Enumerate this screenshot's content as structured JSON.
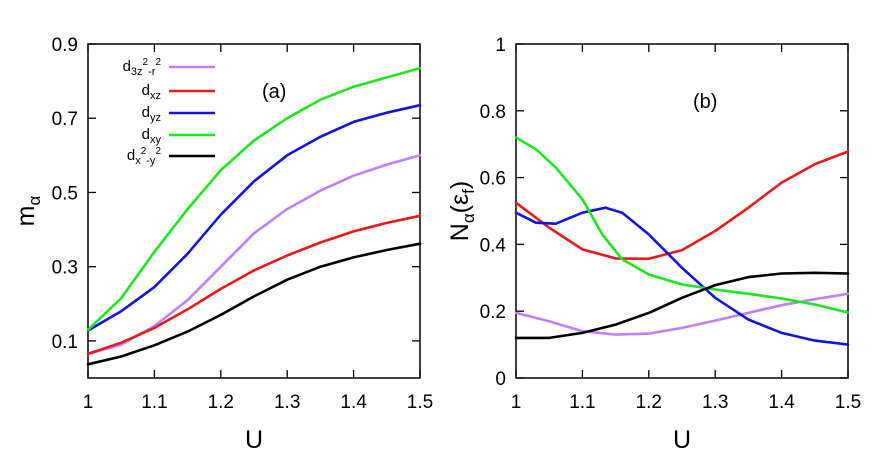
{
  "chart_data": [
    {
      "type": "line",
      "tag": "(a)",
      "xlabel": "U",
      "ylabel": "m",
      "ylabel_sub": "α",
      "xlim": [
        1.0,
        1.5
      ],
      "ylim": [
        0.0,
        0.9
      ],
      "xticks": [
        "1",
        "1.1",
        "1.2",
        "1.3",
        "1.4",
        "1.5"
      ],
      "yticks": [
        "0.1",
        "0.3",
        "0.5",
        "0.7",
        "0.9"
      ],
      "grid": false,
      "legend_position": "top-left",
      "series": [
        {
          "name": "d3z2-r2",
          "legend": {
            "base": "d",
            "sub": "3z",
            "sup1": "2",
            "sub2": "-r",
            "sup2": "2"
          },
          "color": "#bf80ff",
          "x": [
            1.0,
            1.05,
            1.1,
            1.15,
            1.2,
            1.25,
            1.3,
            1.35,
            1.4,
            1.45,
            1.5
          ],
          "y": [
            0.065,
            0.09,
            0.14,
            0.21,
            0.3,
            0.39,
            0.455,
            0.505,
            0.545,
            0.575,
            0.6
          ]
        },
        {
          "name": "dxz",
          "legend": {
            "base": "d",
            "sub": "xz"
          },
          "color": "#e41a1c",
          "x": [
            1.0,
            1.05,
            1.1,
            1.15,
            1.2,
            1.25,
            1.3,
            1.35,
            1.4,
            1.45,
            1.5
          ],
          "y": [
            0.065,
            0.095,
            0.135,
            0.185,
            0.24,
            0.29,
            0.33,
            0.365,
            0.395,
            0.418,
            0.437
          ]
        },
        {
          "name": "dyz",
          "legend": {
            "base": "d",
            "sub": "yz"
          },
          "color": "#1414d6",
          "x": [
            1.0,
            1.05,
            1.1,
            1.15,
            1.2,
            1.25,
            1.3,
            1.35,
            1.4,
            1.45,
            1.5
          ],
          "y": [
            0.128,
            0.18,
            0.245,
            0.335,
            0.44,
            0.53,
            0.6,
            0.65,
            0.69,
            0.715,
            0.735
          ]
        },
        {
          "name": "dxy",
          "legend": {
            "base": "d",
            "sub": "xy"
          },
          "color": "#1ee61e",
          "x": [
            1.0,
            1.05,
            1.1,
            1.15,
            1.2,
            1.25,
            1.3,
            1.35,
            1.4,
            1.45,
            1.5
          ],
          "y": [
            0.13,
            0.215,
            0.34,
            0.455,
            0.56,
            0.64,
            0.7,
            0.75,
            0.785,
            0.81,
            0.835
          ]
        },
        {
          "name": "dx2-y2",
          "legend": {
            "base": "d",
            "sub": "x",
            "sup1": "2",
            "sub2": "-y",
            "sup2": "2"
          },
          "color": "#000000",
          "x": [
            1.0,
            1.05,
            1.1,
            1.15,
            1.2,
            1.25,
            1.3,
            1.35,
            1.4,
            1.45,
            1.5
          ],
          "y": [
            0.037,
            0.058,
            0.088,
            0.125,
            0.17,
            0.22,
            0.265,
            0.3,
            0.325,
            0.345,
            0.362
          ]
        }
      ]
    },
    {
      "type": "line",
      "tag": "(b)",
      "xlabel": "U",
      "ylabel": "N",
      "ylabel_sub": "α",
      "ylabel_rest": "(ε",
      "ylabel_rest_sub": "f",
      "ylabel_close": ")",
      "xlim": [
        1.0,
        1.5
      ],
      "ylim": [
        0.0,
        1.0
      ],
      "xticks": [
        "1",
        "1.1",
        "1.2",
        "1.3",
        "1.4",
        "1.5"
      ],
      "yticks": [
        "0",
        "0.2",
        "0.4",
        "0.6",
        "0.8",
        "1"
      ],
      "grid": false,
      "series": [
        {
          "name": "d3z2-r2",
          "color": "#bf80ff",
          "x": [
            1.0,
            1.05,
            1.1,
            1.15,
            1.2,
            1.25,
            1.3,
            1.35,
            1.4,
            1.45,
            1.5
          ],
          "y": [
            0.195,
            0.17,
            0.14,
            0.13,
            0.133,
            0.15,
            0.172,
            0.195,
            0.218,
            0.236,
            0.252
          ]
        },
        {
          "name": "dxz",
          "color": "#e41a1c",
          "x": [
            1.0,
            1.05,
            1.1,
            1.15,
            1.2,
            1.25,
            1.3,
            1.35,
            1.4,
            1.45,
            1.5
          ],
          "y": [
            0.525,
            0.45,
            0.385,
            0.358,
            0.357,
            0.383,
            0.44,
            0.51,
            0.585,
            0.64,
            0.678
          ]
        },
        {
          "name": "dyz",
          "color": "#1414d6",
          "x": [
            1.0,
            1.03,
            1.06,
            1.1,
            1.135,
            1.16,
            1.2,
            1.25,
            1.3,
            1.35,
            1.4,
            1.45,
            1.5
          ],
          "y": [
            0.495,
            0.465,
            0.462,
            0.495,
            0.51,
            0.495,
            0.43,
            0.33,
            0.24,
            0.175,
            0.135,
            0.112,
            0.1
          ]
        },
        {
          "name": "dxy",
          "color": "#1ee61e",
          "x": [
            1.0,
            1.03,
            1.06,
            1.1,
            1.13,
            1.16,
            1.2,
            1.25,
            1.3,
            1.35,
            1.4,
            1.45,
            1.5
          ],
          "y": [
            0.72,
            0.685,
            0.63,
            0.535,
            0.43,
            0.355,
            0.31,
            0.28,
            0.265,
            0.252,
            0.238,
            0.22,
            0.196
          ]
        },
        {
          "name": "dx2-y2",
          "color": "#000000",
          "x": [
            1.0,
            1.05,
            1.1,
            1.15,
            1.2,
            1.25,
            1.3,
            1.35,
            1.4,
            1.45,
            1.5
          ],
          "y": [
            0.12,
            0.12,
            0.135,
            0.16,
            0.195,
            0.24,
            0.278,
            0.302,
            0.313,
            0.315,
            0.313
          ]
        }
      ]
    }
  ]
}
